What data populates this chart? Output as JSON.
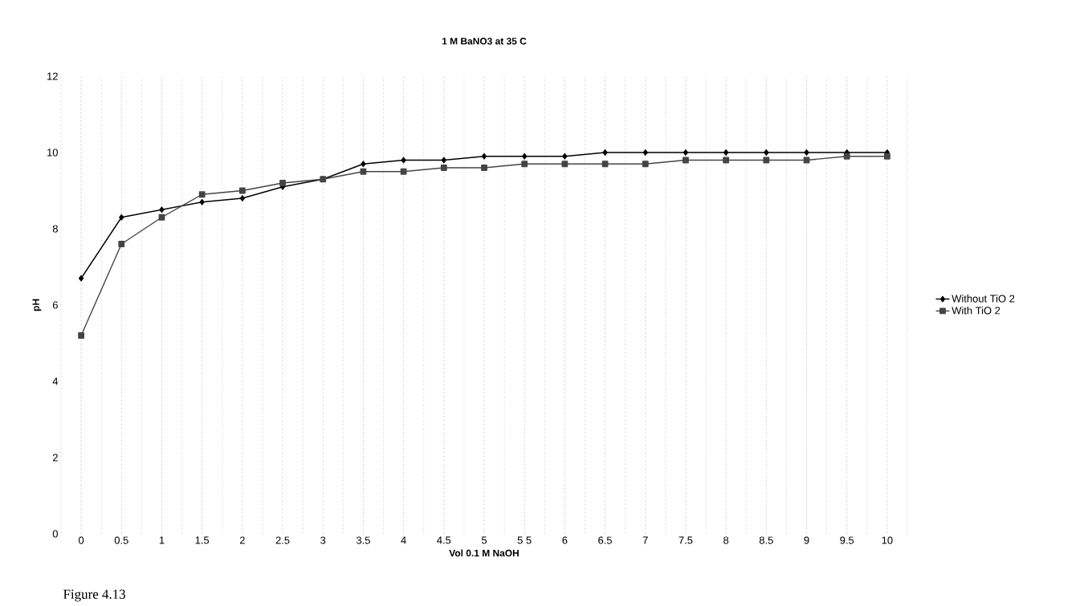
{
  "chart_data": {
    "type": "line",
    "title": "1 M BaNO3 at 35 C",
    "xlabel": "Vol 0.1 M NaOH",
    "ylabel": "pH",
    "categories": [
      "0",
      "0.5",
      "1",
      "1.5",
      "2",
      "2.5",
      "3",
      "3.5",
      "4",
      "4.5",
      "5",
      "5 5",
      "6",
      "6.5",
      "7",
      "7.5",
      "8",
      "8.5",
      "9",
      "9.5",
      "10"
    ],
    "series": [
      {
        "name": "Without TiO 2",
        "color": "#000000",
        "marker": "diamond",
        "values": [
          6.7,
          8.3,
          8.5,
          8.7,
          8.8,
          9.1,
          9.3,
          9.7,
          9.8,
          9.8,
          9.9,
          9.9,
          9.9,
          10.0,
          10.0,
          10.0,
          10.0,
          10.0,
          10.0,
          10.0,
          10.0
        ]
      },
      {
        "name": "With TiO 2",
        "color": "#444444",
        "marker": "square",
        "values": [
          5.2,
          7.6,
          8.3,
          8.9,
          9.0,
          9.2,
          9.3,
          9.5,
          9.5,
          9.6,
          9.6,
          9.7,
          9.7,
          9.7,
          9.7,
          9.8,
          9.8,
          9.8,
          9.8,
          9.9,
          9.9
        ]
      }
    ],
    "ylim": [
      0,
      12
    ],
    "yticks": [
      0,
      2,
      4,
      6,
      8,
      10,
      12
    ],
    "grid": "x",
    "legend": "right",
    "line_style": "solid",
    "annotations": [
      "Figure 4.13"
    ]
  }
}
